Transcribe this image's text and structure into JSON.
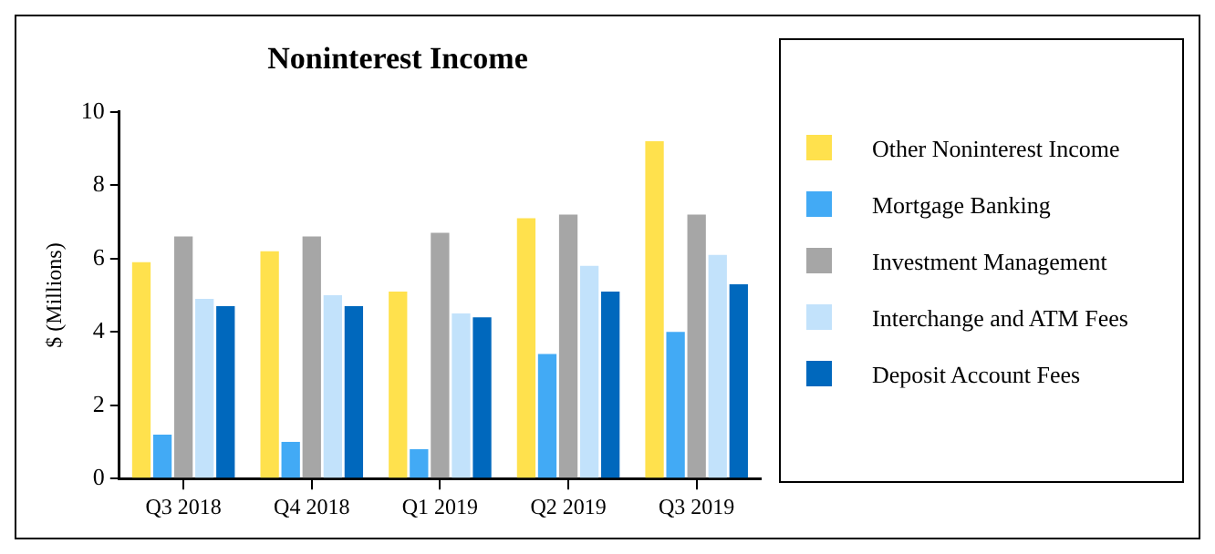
{
  "chart_data": {
    "type": "bar",
    "title": "Noninterest Income",
    "ylabel": "$ (Millions)",
    "categories": [
      "Q3 2018",
      "Q4 2018",
      "Q1 2019",
      "Q2 2019",
      "Q3 2019"
    ],
    "series": [
      {
        "name": "Other Noninterest Income",
        "color": "#ffe14d",
        "values": [
          5.9,
          6.2,
          5.1,
          7.1,
          9.2
        ]
      },
      {
        "name": "Mortgage Banking",
        "color": "#42aaf5",
        "values": [
          1.2,
          1.0,
          0.8,
          3.4,
          4.0
        ]
      },
      {
        "name": "Investment Management",
        "color": "#a6a6a6",
        "values": [
          6.6,
          6.6,
          6.7,
          7.2,
          7.2
        ]
      },
      {
        "name": "Interchange and ATM Fees",
        "color": "#c2e2fb",
        "values": [
          4.9,
          5.0,
          4.5,
          5.8,
          6.1
        ]
      },
      {
        "name": "Deposit Account Fees",
        "color": "#0068bd",
        "values": [
          4.7,
          4.7,
          4.4,
          5.1,
          5.3
        ]
      }
    ],
    "ylim": [
      0,
      10
    ],
    "yticks": [
      0,
      2,
      4,
      6,
      8,
      10
    ],
    "grid": false,
    "legend": "right"
  }
}
